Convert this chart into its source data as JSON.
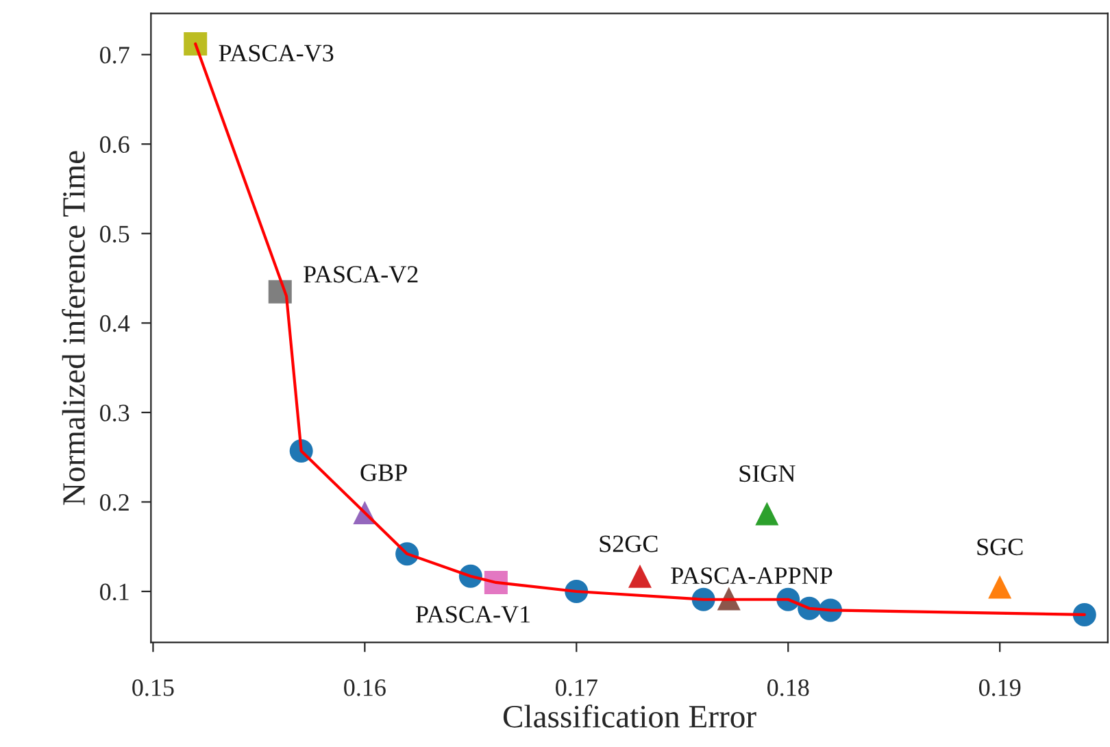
{
  "chart_data": {
    "type": "scatter",
    "xlabel": "Classification Error",
    "ylabel": "Normalized inference Time",
    "xlim": [
      0.1499,
      0.1951
    ],
    "ylim": [
      0.043,
      0.746
    ],
    "xticks": [
      0.15,
      0.16,
      0.17,
      0.18,
      0.19
    ],
    "yticks": [
      0.1,
      0.2,
      0.3,
      0.4,
      0.5,
      0.6,
      0.7
    ],
    "grid": false,
    "legend": false,
    "series": [
      {
        "type": "line",
        "color": "#ff0000",
        "marker": "none",
        "x": [
          0.152,
          0.1563,
          0.157,
          0.162,
          0.165,
          0.1662,
          0.17,
          0.176,
          0.18,
          0.181,
          0.182,
          0.194
        ],
        "values": [
          0.712,
          0.43,
          0.257,
          0.142,
          0.117,
          0.11,
          0.1,
          0.091,
          0.091,
          0.081,
          0.079,
          0.074
        ]
      },
      {
        "color": "#1f77b4",
        "marker": "circle",
        "x": [
          0.157,
          0.162,
          0.165,
          0.17,
          0.176,
          0.18,
          0.181,
          0.182,
          0.194
        ],
        "values": [
          0.257,
          0.142,
          0.117,
          0.1,
          0.091,
          0.091,
          0.081,
          0.079,
          0.074
        ]
      },
      {
        "name": "PASCA-V3",
        "color": "#bcbd22",
        "marker": "square",
        "x": [
          0.152
        ],
        "values": [
          0.712
        ]
      },
      {
        "name": "PASCA-V2",
        "color": "#7f7f7f",
        "marker": "square",
        "x": [
          0.156
        ],
        "values": [
          0.435
        ]
      },
      {
        "name": "GBP",
        "color": "#9467bd",
        "marker": "triangle",
        "x": [
          0.16
        ],
        "values": [
          0.188
        ]
      },
      {
        "name": "PASCA-V1",
        "color": "#e377c2",
        "marker": "square",
        "x": [
          0.1662
        ],
        "values": [
          0.11
        ]
      },
      {
        "name": "S2GC",
        "color": "#d62728",
        "marker": "triangle",
        "x": [
          0.173
        ],
        "values": [
          0.117
        ]
      },
      {
        "name": "PASCA-APPNP",
        "color": "#8c564b",
        "marker": "triangle",
        "x": [
          0.1772
        ],
        "values": [
          0.092
        ]
      },
      {
        "name": "SIGN",
        "color": "#2ca02c",
        "marker": "triangle",
        "x": [
          0.179
        ],
        "values": [
          0.187
        ]
      },
      {
        "name": "SGC",
        "color": "#ff7f0e",
        "marker": "triangle",
        "x": [
          0.19
        ],
        "values": [
          0.105
        ]
      }
    ]
  }
}
